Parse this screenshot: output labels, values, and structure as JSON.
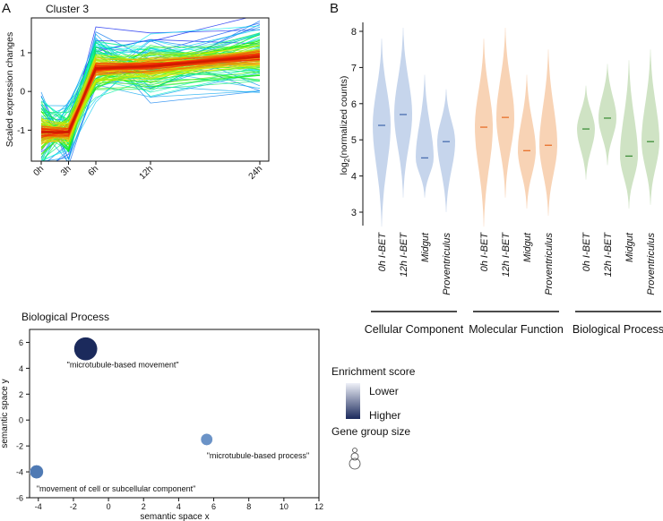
{
  "panel_labels": {
    "a": "A",
    "b": "B"
  },
  "chart_data": [
    {
      "id": "panel-a",
      "type": "line",
      "title": "Cluster 3",
      "xlabel": "",
      "ylabel": "Scaled expression changes",
      "x_tick_labels": [
        "0h",
        "3h",
        "6h",
        "12h",
        "24h"
      ],
      "x_hours": [
        0,
        3,
        6,
        12,
        24
      ],
      "ylim": [
        -1.8,
        1.9
      ],
      "y_ticks": [
        -1,
        0,
        1
      ],
      "series_summary": {
        "description": "many individual gene profiles colored blue to red by membership",
        "centroid": [
          -1.05,
          -1.05,
          0.6,
          0.65,
          0.9
        ]
      }
    },
    {
      "id": "panel-b",
      "type": "violin",
      "ylabel": "log2(normalized counts)",
      "ylabel_main": "log",
      "ylabel_sub": "2",
      "ylabel_rest": "(normalized counts)",
      "ylim": [
        2.5,
        8.2
      ],
      "y_ticks": [
        3,
        4,
        5,
        6,
        7,
        8
      ],
      "category_labels": [
        "0h I-BET",
        "12h I-BET",
        "Midgut",
        "Proventriculus"
      ],
      "groups": [
        {
          "name": "Cellular Component",
          "fill": "#c6d5ec",
          "median_color": "#4a6fb0",
          "violins": [
            {
              "category": "0h I-BET",
              "median": 5.4,
              "min": 2.6,
              "max": 7.8
            },
            {
              "category": "12h I-BET",
              "median": 5.7,
              "min": 3.4,
              "max": 8.1
            },
            {
              "category": "Midgut",
              "median": 4.5,
              "min": 3.4,
              "max": 6.8
            },
            {
              "category": "Proventriculus",
              "median": 4.95,
              "min": 3.0,
              "max": 6.4
            }
          ]
        },
        {
          "name": "Molecular Function",
          "fill": "#f8d3b5",
          "median_color": "#e8702a",
          "violins": [
            {
              "category": "0h I-BET",
              "median": 5.35,
              "min": 2.6,
              "max": 7.8
            },
            {
              "category": "12h I-BET",
              "median": 5.62,
              "min": 3.4,
              "max": 8.1
            },
            {
              "category": "Midgut",
              "median": 4.7,
              "min": 3.1,
              "max": 6.8
            },
            {
              "category": "Proventriculus",
              "median": 4.85,
              "min": 2.9,
              "max": 7.5
            }
          ]
        },
        {
          "name": "Biological Process",
          "fill": "#cfe3c4",
          "median_color": "#3f8f3a",
          "violins": [
            {
              "category": "0h I-BET",
              "median": 5.3,
              "min": 3.9,
              "max": 6.5
            },
            {
              "category": "12h I-BET",
              "median": 5.6,
              "min": 4.3,
              "max": 7.1
            },
            {
              "category": "Midgut",
              "median": 4.55,
              "min": 3.1,
              "max": 7.2
            },
            {
              "category": "Proventriculus",
              "median": 4.95,
              "min": 3.2,
              "max": 7.5
            }
          ]
        }
      ]
    },
    {
      "id": "panel-c",
      "type": "scatter",
      "title": "Biological Process",
      "xlabel": "semantic space x",
      "ylabel": "semantic space y",
      "xlim": [
        -4.5,
        12
      ],
      "ylim": [
        -6,
        7
      ],
      "x_ticks": [
        -4,
        -2,
        0,
        2,
        4,
        6,
        8,
        10,
        12
      ],
      "y_ticks": [
        -6,
        -4,
        -2,
        0,
        2,
        4,
        6
      ],
      "points": [
        {
          "label": "\"microtubule-based movement\"",
          "x": -1.3,
          "y": 5.5,
          "size": 3,
          "color": "#1b2a5c"
        },
        {
          "label": "\"microtubule-based process\"",
          "x": 5.6,
          "y": -1.5,
          "size": 1,
          "color": "#6b93c7"
        },
        {
          "label": "\"movement of cell or subcellular component\"",
          "x": -4.1,
          "y": -4.0,
          "size": 1.3,
          "color": "#4f7ab4"
        }
      ],
      "legend": {
        "color_title": "Enrichment score",
        "low_label": "Lower",
        "high_label": "Higher",
        "low_color": "#eef0f8",
        "high_color": "#1b2a5c",
        "size_title": "Gene group size"
      }
    }
  ]
}
